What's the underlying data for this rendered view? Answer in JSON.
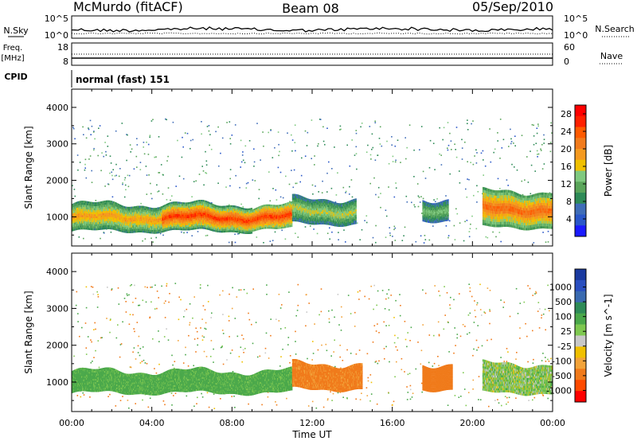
{
  "header": {
    "station": "McMurdo (fitACF)",
    "beam": "Beam 08",
    "date": "05/Sep/2010"
  },
  "sky_panel": {
    "left_label": "N.Sky",
    "right_label": "N.Search",
    "left_ticks": [
      "10^5",
      "10^0"
    ],
    "right_ticks": [
      "10^5",
      "10^0"
    ]
  },
  "freq_panel": {
    "left_label_1": "Freq.",
    "left_label_2": "[MHz]",
    "right_label": "Nave",
    "left_ticks": [
      "18",
      "8"
    ],
    "right_ticks": [
      "60",
      "0"
    ]
  },
  "cpid": {
    "label": "CPID",
    "value": "normal (fast) 151"
  },
  "colors": {
    "power_scale": [
      "#1a1aff",
      "#2a57c9",
      "#3f6db8",
      "#2e8b57",
      "#5aa55a",
      "#7fc97f",
      "#f0c000",
      "#f59a20",
      "#f27b1c",
      "#ff5a00",
      "#ff2000",
      "#ff0000"
    ],
    "velocity_scale": [
      "#ff0000",
      "#ff4a00",
      "#f07a1a",
      "#f2a33a",
      "#f0c000",
      "#c8c8c8",
      "#7ec850",
      "#4aa84a",
      "#2e8b57",
      "#3a6ab0",
      "#2a4fc0",
      "#1a3aa0"
    ]
  },
  "chart_data": [
    {
      "type": "heatmap",
      "title": "",
      "xlabel": "",
      "ylabel": "Slant Range [km]",
      "ylim": [
        200,
        4500
      ],
      "x_ticks": [
        "00:00",
        "04:00",
        "08:00",
        "12:00",
        "16:00",
        "20:00",
        "00:00"
      ],
      "y_ticks": [
        1000,
        2000,
        3000,
        4000
      ],
      "colorbar": {
        "label": "Power [dB]",
        "ticks": [
          4,
          8,
          12,
          16,
          20,
          24,
          28
        ],
        "range": [
          0,
          30
        ]
      },
      "bands": [
        {
          "start_hr": 0.0,
          "end_hr": 9.0,
          "low_km": 600,
          "high_km": 1350,
          "power_db": 20
        },
        {
          "start_hr": 4.5,
          "end_hr": 11.0,
          "low_km": 650,
          "high_km": 1300,
          "power_db": 27
        },
        {
          "start_hr": 11.0,
          "end_hr": 14.2,
          "low_km": 800,
          "high_km": 1500,
          "power_db": 16
        },
        {
          "start_hr": 17.5,
          "end_hr": 18.8,
          "low_km": 900,
          "high_km": 1500,
          "power_db": 14
        },
        {
          "start_hr": 20.5,
          "end_hr": 24.0,
          "low_km": 700,
          "high_km": 1700,
          "power_db": 24
        }
      ]
    },
    {
      "type": "heatmap",
      "title": "",
      "xlabel": "Time UT",
      "ylabel": "Slant Range [km]",
      "ylim": [
        200,
        4500
      ],
      "x_ticks": [
        "00:00",
        "04:00",
        "08:00",
        "12:00",
        "16:00",
        "20:00",
        "00:00"
      ],
      "y_ticks": [
        1000,
        2000,
        3000,
        4000
      ],
      "colorbar": {
        "label": "Velocity [m s^-1]",
        "ticks": [
          "1000",
          "500",
          "100",
          "25",
          "-25",
          "-100",
          "-500",
          "-1000"
        ]
      },
      "bands": [
        {
          "start_hr": 0.0,
          "end_hr": 11.0,
          "low_km": 700,
          "high_km": 1300,
          "velocity": 150
        },
        {
          "start_hr": 11.0,
          "end_hr": 14.5,
          "low_km": 800,
          "high_km": 1500,
          "velocity": -150
        },
        {
          "start_hr": 17.5,
          "end_hr": 19.0,
          "low_km": 800,
          "high_km": 1500,
          "velocity": -200
        },
        {
          "start_hr": 20.5,
          "end_hr": 24.0,
          "low_km": 700,
          "high_km": 1500,
          "velocity": 60
        }
      ]
    }
  ]
}
